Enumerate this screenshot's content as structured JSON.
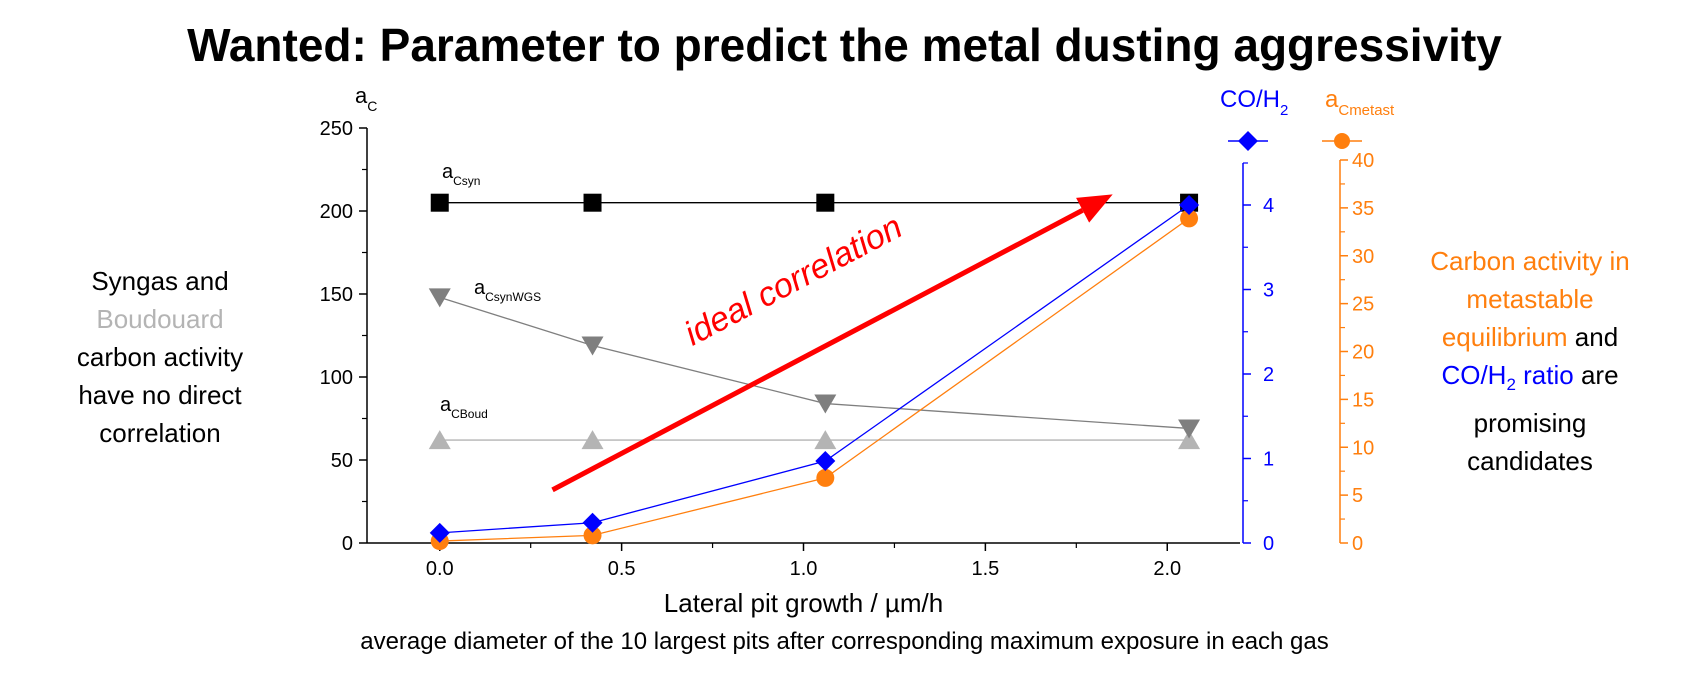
{
  "title": "Wanted: Parameter to predict the metal dusting aggressivity",
  "left_note": {
    "line1": "Syngas and",
    "line2": "Boudouard",
    "line3": "carbon activity",
    "line4": "have no direct",
    "line5": "correlation"
  },
  "right_note": {
    "line1": "Carbon activity in",
    "line2": "metastable",
    "line3a": "equilibrium",
    "line3b": " and",
    "line4a": "CO/H",
    "line4a_sub": "2",
    "line4b": " ratio",
    "line4c": " are",
    "line5": "promising",
    "line6": "candidates"
  },
  "caption": "average diameter of the 10 largest pits after corresponding maximum exposure in each gas",
  "colors": {
    "black": "#000000",
    "dark_gray": "#7f7f7f",
    "light_gray": "#b4b4b4",
    "blue": "#0000ff",
    "orange": "#ff7f0e",
    "red": "#ff0000"
  },
  "chart_data": {
    "type": "line",
    "xlabel": "Lateral pit growth / µm/h",
    "xlim": [
      -0.2,
      2.2
    ],
    "x_ticks": [
      0.0,
      0.5,
      1.0,
      1.5,
      2.0
    ],
    "x_tick_labels": [
      "0.0",
      "0.5",
      "1.0",
      "1.5",
      "2.0"
    ],
    "y_left": {
      "label_main": "a",
      "label_sub": "C",
      "lim": [
        0,
        250
      ],
      "ticks": [
        0,
        50,
        100,
        150,
        200,
        250
      ],
      "tick_labels": [
        "0",
        "50",
        "100",
        "150",
        "200",
        "250"
      ]
    },
    "y_blue": {
      "label_main": "CO/H",
      "label_sub": "2",
      "lim": [
        0,
        4.5
      ],
      "ticks": [
        0,
        1,
        2,
        3,
        4
      ],
      "tick_labels": [
        "0",
        "1",
        "2",
        "3",
        "4"
      ]
    },
    "y_orange": {
      "label_main": "a",
      "label_sub": "Cmetast",
      "lim": [
        0,
        40
      ],
      "ticks": [
        0,
        5,
        10,
        15,
        20,
        25,
        30,
        35,
        40
      ],
      "tick_labels": [
        "0",
        "5",
        "10",
        "15",
        "20",
        "25",
        "30",
        "35",
        "40"
      ]
    },
    "series": [
      {
        "name": "aCsyn",
        "label_main": "a",
        "label_sub": "Csyn",
        "axis": "left",
        "marker": "square",
        "x": [
          0.0,
          0.42,
          1.06,
          2.06
        ],
        "values": [
          205,
          205,
          205,
          205
        ]
      },
      {
        "name": "aCsynWGS",
        "label_main": "a",
        "label_sub": "CsynWGS",
        "axis": "left",
        "marker": "triangle-down",
        "x": [
          0.0,
          0.42,
          1.06,
          2.06
        ],
        "values": [
          148,
          119,
          84,
          69
        ]
      },
      {
        "name": "aCBoud",
        "label_main": "a",
        "label_sub": "CBoud",
        "axis": "left",
        "marker": "triangle-up",
        "x": [
          0.0,
          0.42,
          1.06,
          2.06
        ],
        "values": [
          62,
          62,
          62,
          62
        ]
      },
      {
        "name": "CO/H2",
        "axis": "blue",
        "marker": "diamond",
        "x": [
          0.0,
          0.42,
          1.06,
          2.06
        ],
        "values": [
          0.12,
          0.24,
          0.97,
          4.0
        ]
      },
      {
        "name": "aCmetast",
        "axis": "orange",
        "marker": "circle",
        "x": [
          0.0,
          0.42,
          1.06,
          2.06
        ],
        "values": [
          0.2,
          0.8,
          6.8,
          33.9
        ]
      }
    ],
    "annotations": [
      {
        "text": "ideal correlation",
        "from": [
          0.31,
          32
        ],
        "to": [
          1.85,
          210
        ]
      }
    ]
  }
}
